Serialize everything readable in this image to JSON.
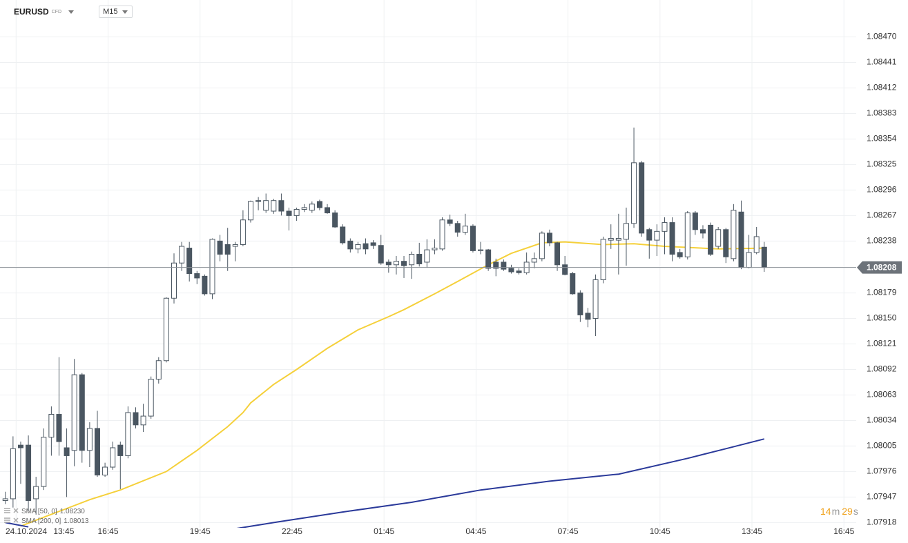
{
  "header": {
    "symbol": "EURUSD",
    "symbol_type": "CFD",
    "timeframe": "M15"
  },
  "chart_data": {
    "type": "candlestick",
    "open": [
      1.07943,
      1.07945,
      1.08006,
      1.08006,
      1.07945,
      1.07959,
      1.08015,
      1.08041,
      1.08003,
      1.08,
      1.08086,
      1.08,
      1.08025,
      1.07972,
      1.07981,
      1.08006,
      1.07994,
      1.08043,
      1.08029,
      1.08039,
      1.08081,
      1.08102,
      1.08173,
      1.08213,
      1.0823,
      1.08201,
      1.08198,
      1.08178,
      1.08238,
      1.08234,
      1.08232,
      1.08234,
      1.08262,
      1.08284,
      1.08273,
      1.08272,
      1.08284,
      1.08272,
      1.08267,
      1.08274,
      1.08273,
      1.08283,
      1.08276,
      1.0827,
      1.08254,
      1.08238,
      1.08229,
      1.08235,
      1.08236,
      1.08233,
      1.08214,
      1.08211,
      1.08215,
      1.08211,
      1.08223,
      1.08214,
      1.08228,
      1.08229,
      1.08262,
      1.08258,
      1.08248,
      1.08255,
      1.08227,
      1.08228,
      1.08214,
      1.08214,
      1.08207,
      1.08204,
      1.08202,
      1.08214,
      1.08218,
      1.08247,
      1.08236,
      1.08211,
      1.08201,
      1.08179,
      1.08156,
      1.0815,
      1.08194,
      1.08239,
      1.08239,
      1.0824,
      1.08258,
      1.08327,
      1.08251,
      1.08239,
      1.08249,
      1.08259,
      1.08225,
      1.0822,
      1.0827,
      1.08251,
      1.08256,
      1.08232,
      1.08251,
      1.08218,
      1.08271,
      1.08208,
      1.08225,
      1.08231
    ],
    "high": [
      1.07953,
      1.08016,
      1.0801,
      1.08017,
      1.0797,
      1.08025,
      1.0805,
      1.08106,
      1.08025,
      1.08104,
      1.08088,
      1.08032,
      1.08045,
      1.07986,
      1.0801,
      1.0801,
      1.0805,
      1.08049,
      1.08053,
      1.08084,
      1.08106,
      1.08174,
      1.08224,
      1.08237,
      1.08237,
      1.08204,
      1.082,
      1.08241,
      1.08245,
      1.08253,
      1.08237,
      1.08273,
      1.08284,
      1.08288,
      1.08292,
      1.08286,
      1.08292,
      1.08276,
      1.08276,
      1.0828,
      1.08283,
      1.08285,
      1.0828,
      1.08273,
      1.08257,
      1.08241,
      1.08237,
      1.08241,
      1.08239,
      1.08245,
      1.08217,
      1.08221,
      1.08221,
      1.08226,
      1.08236,
      1.0824,
      1.0824,
      1.08265,
      1.08268,
      1.08261,
      1.08269,
      1.08257,
      1.08237,
      1.08229,
      1.08218,
      1.08217,
      1.08211,
      1.08207,
      1.08225,
      1.08225,
      1.08249,
      1.08251,
      1.08237,
      1.08221,
      1.08203,
      1.08182,
      1.08162,
      1.082,
      1.08243,
      1.08257,
      1.08269,
      1.08276,
      1.08367,
      1.08329,
      1.08253,
      1.08257,
      1.08265,
      1.08265,
      1.08229,
      1.08272,
      1.08272,
      1.08256,
      1.08259,
      1.08254,
      1.08253,
      1.0828,
      1.08284,
      1.08245,
      1.08254,
      1.08237
    ],
    "low": [
      1.07939,
      1.07935,
      1.07962,
      1.07931,
      1.07927,
      1.07955,
      1.07994,
      1.07994,
      1.07947,
      1.07982,
      1.07986,
      1.07981,
      1.0797,
      1.0797,
      1.07978,
      1.07956,
      1.07991,
      1.08025,
      1.08021,
      1.08036,
      1.08076,
      1.081,
      1.08167,
      1.08204,
      1.08192,
      1.08189,
      1.08176,
      1.08172,
      1.08215,
      1.08204,
      1.08215,
      1.08232,
      1.08259,
      1.08273,
      1.0827,
      1.08269,
      1.08267,
      1.0825,
      1.08261,
      1.08271,
      1.0827,
      1.08273,
      1.08269,
      1.08253,
      1.08234,
      1.08225,
      1.08224,
      1.08223,
      1.08229,
      1.08211,
      1.08202,
      1.082,
      1.08196,
      1.08195,
      1.08209,
      1.08208,
      1.08223,
      1.08227,
      1.08255,
      1.08243,
      1.08245,
      1.08225,
      1.08223,
      1.08204,
      1.08198,
      1.08204,
      1.08201,
      1.082,
      1.082,
      1.08207,
      1.08215,
      1.08232,
      1.08204,
      1.08199,
      1.08177,
      1.08146,
      1.0814,
      1.0813,
      1.0819,
      1.08229,
      1.082,
      1.0821,
      1.08253,
      1.08243,
      1.08218,
      1.08221,
      1.08223,
      1.08215,
      1.08218,
      1.08217,
      1.08245,
      1.08241,
      1.08221,
      1.08229,
      1.08213,
      1.08215,
      1.08206,
      1.08207,
      1.08223,
      1.08203
    ],
    "close": [
      1.07945,
      1.08002,
      1.08003,
      1.07943,
      1.07959,
      1.08015,
      1.08041,
      1.0801,
      1.07994,
      1.08086,
      1.08,
      1.08025,
      1.07972,
      1.07981,
      1.08003,
      1.07994,
      1.08043,
      1.08029,
      1.08039,
      1.08081,
      1.08102,
      1.08173,
      1.08213,
      1.08232,
      1.08201,
      1.08196,
      1.08178,
      1.0824,
      1.08223,
      1.08223,
      1.08234,
      1.08262,
      1.08283,
      1.08283,
      1.08284,
      1.08284,
      1.08272,
      1.08267,
      1.08274,
      1.08276,
      1.0828,
      1.08276,
      1.0827,
      1.08254,
      1.08236,
      1.08229,
      1.08234,
      1.08229,
      1.08233,
      1.08213,
      1.08211,
      1.08215,
      1.0821,
      1.08223,
      1.08212,
      1.08228,
      1.0823,
      1.08262,
      1.08258,
      1.08248,
      1.08255,
      1.08227,
      1.08228,
      1.08207,
      1.08207,
      1.08206,
      1.08203,
      1.08202,
      1.08214,
      1.08218,
      1.08247,
      1.08236,
      1.08211,
      1.082,
      1.08178,
      1.08154,
      1.08149,
      1.08194,
      1.0824,
      1.08241,
      1.08241,
      1.08258,
      1.08327,
      1.08247,
      1.08239,
      1.08249,
      1.08259,
      1.08223,
      1.0822,
      1.0827,
      1.08251,
      1.08247,
      1.08223,
      1.08251,
      1.0822,
      1.08273,
      1.08208,
      1.08225,
      1.08243,
      1.08208
    ],
    "up_color": "#ffffff",
    "down_color": "#4a5661",
    "edge_color": "#4a5661",
    "ylim": [
      1.07912,
      1.08512
    ],
    "yticks": [
      1.07918,
      1.07947,
      1.07976,
      1.08005,
      1.08034,
      1.08063,
      1.08092,
      1.08121,
      {
        "value": 1.0815,
        "label": "1.08150"
      },
      1.08179,
      1.08238,
      1.08267,
      1.08296,
      1.08325,
      1.08354,
      1.08383,
      1.08412,
      1.08441,
      {
        "value": 1.0847,
        "label": "1.08470"
      }
    ],
    "xlim": [
      -0.7,
      111
    ],
    "xticks": [
      {
        "value": 1.4,
        "label": "13:45"
      },
      {
        "value": 13.4,
        "label": "16:45"
      },
      {
        "value": 25.4,
        "label": "19:45"
      },
      {
        "value": 37.4,
        "label": "22:45"
      },
      {
        "value": 49.4,
        "label": "01:45"
      },
      {
        "value": 61.4,
        "label": "04:45"
      },
      {
        "value": 73.4,
        "label": "07:45"
      },
      {
        "value": 85.4,
        "label": "10:45"
      },
      {
        "value": 97.4,
        "label": "13:45"
      },
      {
        "value": 109.4,
        "label": "16:45"
      }
    ],
    "start_date": "24.10.2024",
    "grid": true,
    "current_price": {
      "value": 1.08208,
      "label": "1.08208"
    },
    "overlays": [
      {
        "name": "SMA [50, 0]",
        "color": "#f5d03a",
        "last_value_label": "1.08230",
        "x": [
          2,
          5,
          8,
          11,
          15,
          21,
          25,
          29,
          31,
          32,
          35,
          38,
          42,
          46,
          50,
          52,
          56,
          59,
          63,
          66,
          70,
          73,
          78,
          82,
          86,
          93,
          99
        ],
        "values": [
          1.07914,
          1.07924,
          1.07934,
          1.07944,
          1.07955,
          1.07976,
          1.08,
          1.08027,
          1.08043,
          1.08054,
          1.08075,
          1.08092,
          1.08116,
          1.08137,
          1.08152,
          1.0816,
          1.08178,
          1.08192,
          1.08211,
          1.08224,
          1.08236,
          1.08237,
          1.08234,
          1.08235,
          1.08232,
          1.08229,
          1.0823
        ]
      },
      {
        "name": "SMA [200, 0]",
        "color": "#2b3a9a",
        "last_value_label": "1.08013",
        "x": [
          0,
          3,
          4,
          30,
          35,
          44,
          53,
          62,
          71,
          80,
          89,
          94,
          99
        ],
        "values": [
          1.07918,
          1.07913,
          null,
          1.07911,
          1.07918,
          1.0793,
          1.07941,
          1.07955,
          1.07965,
          1.07973,
          1.07991,
          1.08002,
          1.08013
        ]
      }
    ],
    "countdown": {
      "minutes": "14",
      "minutes_unit": "m",
      "seconds": "29",
      "seconds_unit": "s"
    }
  }
}
